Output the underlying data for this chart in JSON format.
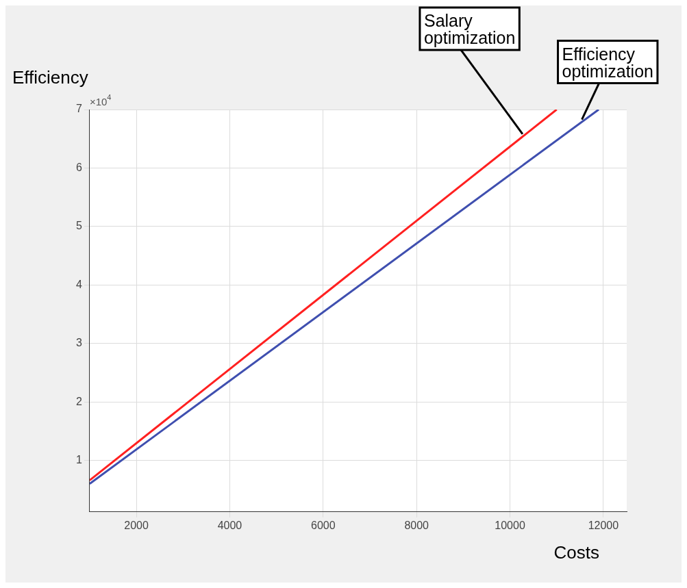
{
  "chart_data": {
    "type": "line",
    "xlabel": "Costs",
    "ylabel": "Efficiency",
    "xlim": [
      1000,
      12500
    ],
    "xticks": [
      2000,
      4000,
      6000,
      8000,
      10000,
      12000
    ],
    "ylim": [
      0.12,
      7
    ],
    "yticks": [
      1,
      2,
      3,
      4,
      5,
      6,
      7
    ],
    "grid": true,
    "legend": false,
    "series": [
      {
        "color": "#ff2020",
        "x": [
          1000,
          11000
        ],
        "values": [
          0.66,
          7
        ]
      },
      {
        "color": "#3f4faf",
        "x": [
          1000,
          11900
        ],
        "values": [
          0.6,
          7
        ]
      }
    ],
    "annotations": [
      "×10$^{4}$",
      {
        "text": "Salary\noptimization",
        "x": 10270,
        "y": 6.58
      },
      {
        "text": "Efficiency\noptimization",
        "x": 11540,
        "y": 6.83
      }
    ]
  }
}
